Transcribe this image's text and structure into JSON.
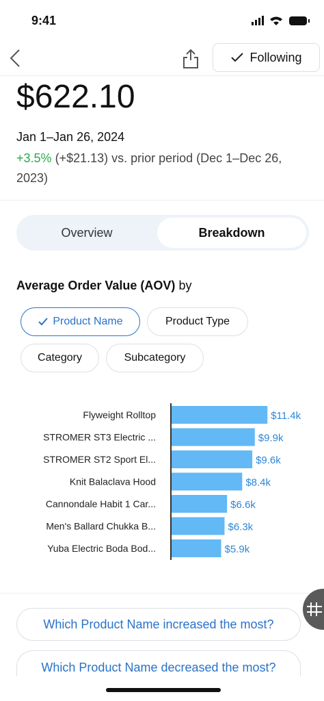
{
  "status_bar": {
    "time": "9:41"
  },
  "nav": {
    "following": "Following"
  },
  "header": {
    "amount": "$622.10",
    "date_range": "Jan 1–Jan 26, 2024",
    "change": "+3.5%",
    "change_detail": "(+$21.13) vs. prior period (Dec 1–Dec 26, 2023)"
  },
  "tabs": [
    "Overview",
    "Breakdown"
  ],
  "section": {
    "title": "Average Order Value (AOV)",
    "by": "by"
  },
  "filters": [
    "Product Name",
    "Product Type",
    "Category",
    "Subcategory"
  ],
  "chart_data": {
    "type": "bar",
    "orientation": "horizontal",
    "color": "#63b8f6",
    "categories": [
      "Flyweight Rolltop",
      "STROMER ST3 Electric ...",
      "STROMER ST2 Sport El...",
      "Knit Balaclava Hood",
      "Cannondale Habit 1 Car...",
      "Men's Ballard Chukka B...",
      "Yuba Electric Boda Bod..."
    ],
    "values": [
      11.4,
      9.9,
      9.6,
      8.4,
      6.6,
      6.3,
      5.9
    ],
    "value_labels": [
      "$11.4k",
      "$9.9k",
      "$9.6k",
      "$8.4k",
      "$6.6k",
      "$6.3k",
      "$5.9k"
    ]
  },
  "questions": [
    "Which Product Name increased the most?",
    "Which Product Name decreased the most?"
  ]
}
